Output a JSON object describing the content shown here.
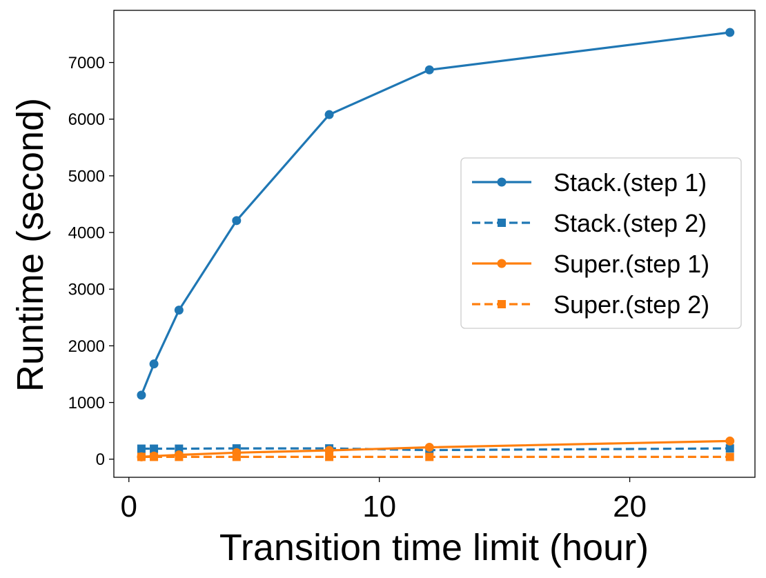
{
  "chart_data": {
    "type": "line",
    "xlabel": "Transition time limit (hour)",
    "ylabel": "Runtime (second)",
    "xlim": [
      -0.6,
      25.0
    ],
    "ylim": [
      -320,
      7920
    ],
    "xticks": [
      0,
      10,
      20
    ],
    "xtick_labels": [
      "0",
      "10",
      "20"
    ],
    "yticks": [
      0,
      1000,
      2000,
      3000,
      4000,
      5000,
      6000,
      7000
    ],
    "ytick_labels": [
      "0",
      "1000",
      "2000",
      "3000",
      "4000",
      "5000",
      "6000",
      "7000"
    ],
    "grid": false,
    "legend_position": "center-right",
    "x": [
      0.5,
      1,
      2,
      4.3,
      8,
      12,
      24
    ],
    "series": [
      {
        "name": "Stack.(step 1)",
        "color": "#1f77b4",
        "linestyle": "solid",
        "marker": "circle",
        "values": [
          1130,
          1680,
          2630,
          4210,
          6080,
          6870,
          7530
        ]
      },
      {
        "name": "Stack.(step 2)",
        "color": "#1f77b4",
        "linestyle": "dashed",
        "marker": "square",
        "values": [
          185,
          185,
          185,
          190,
          190,
          160,
          190
        ]
      },
      {
        "name": "Super.(step 1)",
        "color": "#ff7f0e",
        "linestyle": "solid",
        "marker": "circle",
        "values": [
          40,
          55,
          75,
          115,
          155,
          210,
          320
        ]
      },
      {
        "name": "Super.(step 2)",
        "color": "#ff7f0e",
        "linestyle": "dashed",
        "marker": "square",
        "values": [
          40,
          40,
          40,
          40,
          40,
          40,
          40
        ]
      }
    ]
  }
}
